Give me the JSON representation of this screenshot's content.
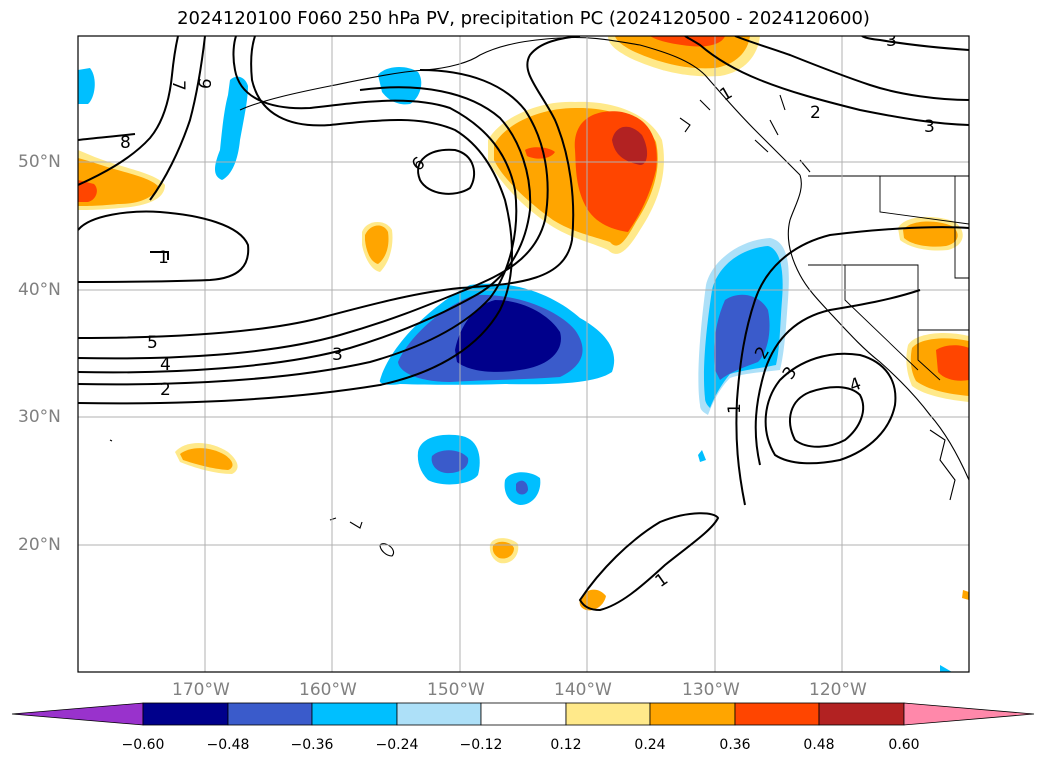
{
  "title": "2024120100 F060 250 hPa PV, precipitation PC (2024120500 - 2024120600)",
  "lat_labels": [
    "50°N",
    "40°N",
    "30°N",
    "20°N"
  ],
  "lon_labels": [
    "170°W",
    "160°W",
    "150°W",
    "140°W",
    "130°W",
    "120°W"
  ],
  "colorbar": {
    "ticks": [
      "−0.60",
      "−0.48",
      "−0.36",
      "−0.24",
      "−0.12",
      "0.12",
      "0.24",
      "0.36",
      "0.48",
      "0.60"
    ],
    "colors": [
      "#9932CC",
      "#00008B",
      "#3A5BCB",
      "#00BFFF",
      "#ADE0F8",
      "#FFFFFF",
      "#FFE98A",
      "#FFA500",
      "#FF4500",
      "#B22222",
      "#FF88AA"
    ]
  },
  "contour_labels": [
    "1",
    "2",
    "3",
    "4",
    "5",
    "6",
    "7",
    "8",
    "9"
  ]
}
